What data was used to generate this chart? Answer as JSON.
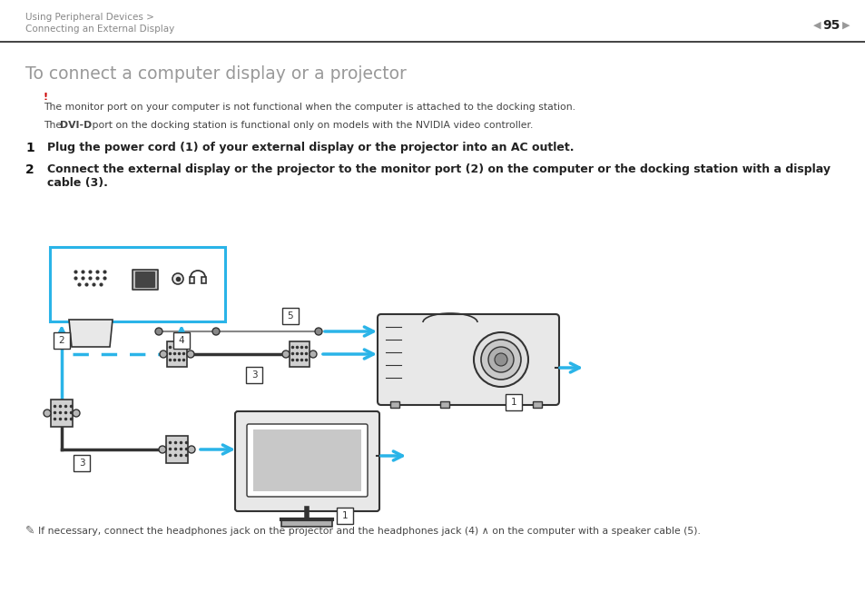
{
  "bg_color": "#ffffff",
  "header_text1": "Using Peripheral Devices >",
  "header_text2": "Connecting an External Display",
  "page_num": "95",
  "title": "To connect a computer display or a projector",
  "title_color": "#999999",
  "exclamation": "!",
  "exclamation_color": "#cc0000",
  "warning_text": "The monitor port on your computer is not functional when the computer is attached to the docking station.",
  "note_prefix": "The ",
  "note_bold": "DVI-D",
  "note_suffix": " port on the docking station is functional only on models with the NVIDIA video controller.",
  "step1_num": "1",
  "step1_text": "Plug the power cord (1) of your external display or the projector into an AC outlet.",
  "step2_num": "2",
  "step2_text": "Connect the external display or the projector to the monitor port (2) on the computer or the docking station with a display\ncable (3).",
  "note_bottom": "If necessary, connect the headphones jack on the projector and the headphones jack (4) ∧ on the computer with a speaker cable (5).",
  "header_color": "#888888",
  "small_text_color": "#444444",
  "step_text_color": "#222222",
  "cyan": "#2ab4e8",
  "dark": "#333333",
  "med": "#888888",
  "light": "#cccccc",
  "lighter": "#e8e8e8"
}
